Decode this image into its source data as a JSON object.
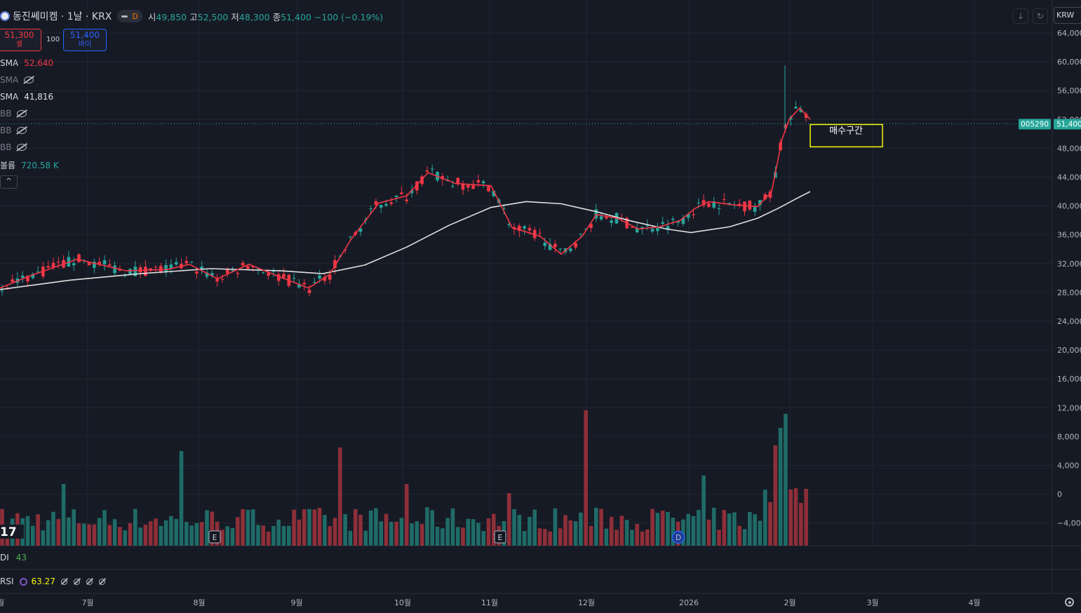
{
  "header": {
    "symbol": "동진쎄미켐 · 1날 · KRX",
    "mode_badge": "D",
    "open_label": "시",
    "open": "49,850",
    "high_label": "고",
    "high": "52,500",
    "low_label": "저",
    "low": "48,300",
    "close_label": "종",
    "close": "51,400",
    "change": "−100 (−0.19%)"
  },
  "trade": {
    "sell_price": "51,300",
    "sell_label": "셀",
    "qty": "100",
    "buy_price": "51,400",
    "buy_label": "바이"
  },
  "indicators": {
    "sma1_label": "SMA",
    "sma1_value": "52,640",
    "sma2_label": "SMA",
    "sma3_label": "SMA",
    "sma3_value": "41,816",
    "bb_label": "BB",
    "volume_label": "볼륨",
    "volume_value": "720.58 K"
  },
  "panes": {
    "dmi_label": "DI",
    "dmi_value": "43",
    "rsi_label": "RSI",
    "rsi_value": "63.27"
  },
  "toolbar": {
    "currency": "KRW"
  },
  "price_tag": {
    "ticker": "005290",
    "last": "51,400"
  },
  "annotation": {
    "text": "매수구간"
  },
  "markers": {
    "earnings": "E",
    "dividend": "D"
  },
  "colors": {
    "up": "#26a69a",
    "down": "#f23645",
    "sma_fast": "#f23645",
    "sma_slow": "#e0e0e0",
    "annotation_border": "#f7f708"
  },
  "chart_data": {
    "type": "candlestick",
    "price_axis": {
      "ticks": [
        "64,000",
        "60,000",
        "56,000",
        "52,000",
        "48,000",
        "44,000",
        "40,000",
        "36,000",
        "32,000",
        "28,000",
        "24,000",
        "20,000",
        "16,000",
        "12,000",
        "8,000",
        "4,000",
        "0",
        "−4,000"
      ]
    },
    "x_axis": {
      "ticks": [
        "7월",
        "8월",
        "9월",
        "10월",
        "11월",
        "12월",
        "2026",
        "2월",
        "3월",
        "4월"
      ]
    },
    "first_visible_label": "월",
    "series": [
      {
        "name": "SMA",
        "approx_points": [
          [
            0,
            28600
          ],
          [
            40,
            30200
          ],
          [
            110,
            32600
          ],
          [
            180,
            31000
          ],
          [
            240,
            31200
          ],
          [
            270,
            31900
          ],
          [
            310,
            29900
          ],
          [
            355,
            31900
          ],
          [
            400,
            30100
          ],
          [
            440,
            28600
          ],
          [
            470,
            30500
          ],
          [
            500,
            35300
          ],
          [
            540,
            40400
          ],
          [
            580,
            41400
          ],
          [
            610,
            44600
          ],
          [
            650,
            43100
          ],
          [
            700,
            42800
          ],
          [
            730,
            37000
          ],
          [
            770,
            35800
          ],
          [
            800,
            33300
          ],
          [
            830,
            35800
          ],
          [
            850,
            38800
          ],
          [
            880,
            38300
          ],
          [
            910,
            36800
          ],
          [
            940,
            37100
          ],
          [
            970,
            38000
          ],
          [
            990,
            39600
          ],
          [
            1010,
            40600
          ],
          [
            1050,
            40100
          ],
          [
            1080,
            39900
          ],
          [
            1100,
            42000
          ],
          [
            1115,
            49300
          ],
          [
            1125,
            52000
          ],
          [
            1140,
            53600
          ],
          [
            1155,
            52000
          ]
        ]
      },
      {
        "name": "SMA (slow)",
        "approx_points": [
          [
            0,
            28400
          ],
          [
            100,
            29700
          ],
          [
            200,
            30600
          ],
          [
            300,
            31300
          ],
          [
            400,
            31000
          ],
          [
            460,
            30600
          ],
          [
            520,
            31800
          ],
          [
            580,
            34300
          ],
          [
            640,
            37300
          ],
          [
            700,
            39800
          ],
          [
            750,
            40600
          ],
          [
            800,
            40300
          ],
          [
            850,
            39200
          ],
          [
            900,
            37900
          ],
          [
            950,
            36800
          ],
          [
            985,
            36300
          ],
          [
            1040,
            37100
          ],
          [
            1080,
            38300
          ],
          [
            1110,
            39700
          ],
          [
            1135,
            41000
          ],
          [
            1155,
            42000
          ]
        ]
      }
    ],
    "last_price": 51400,
    "volume_peak_bars": [
      "2025-06 (x≈92)",
      "2025-08 (x≈257)",
      "2025-09 (x≈485)",
      "2025-12 (x≈837)",
      "2026-01-end (x≈1119)"
    ],
    "annotation_zone": {
      "label": "매수구간",
      "price_from": 48200,
      "price_to": 51300
    }
  }
}
